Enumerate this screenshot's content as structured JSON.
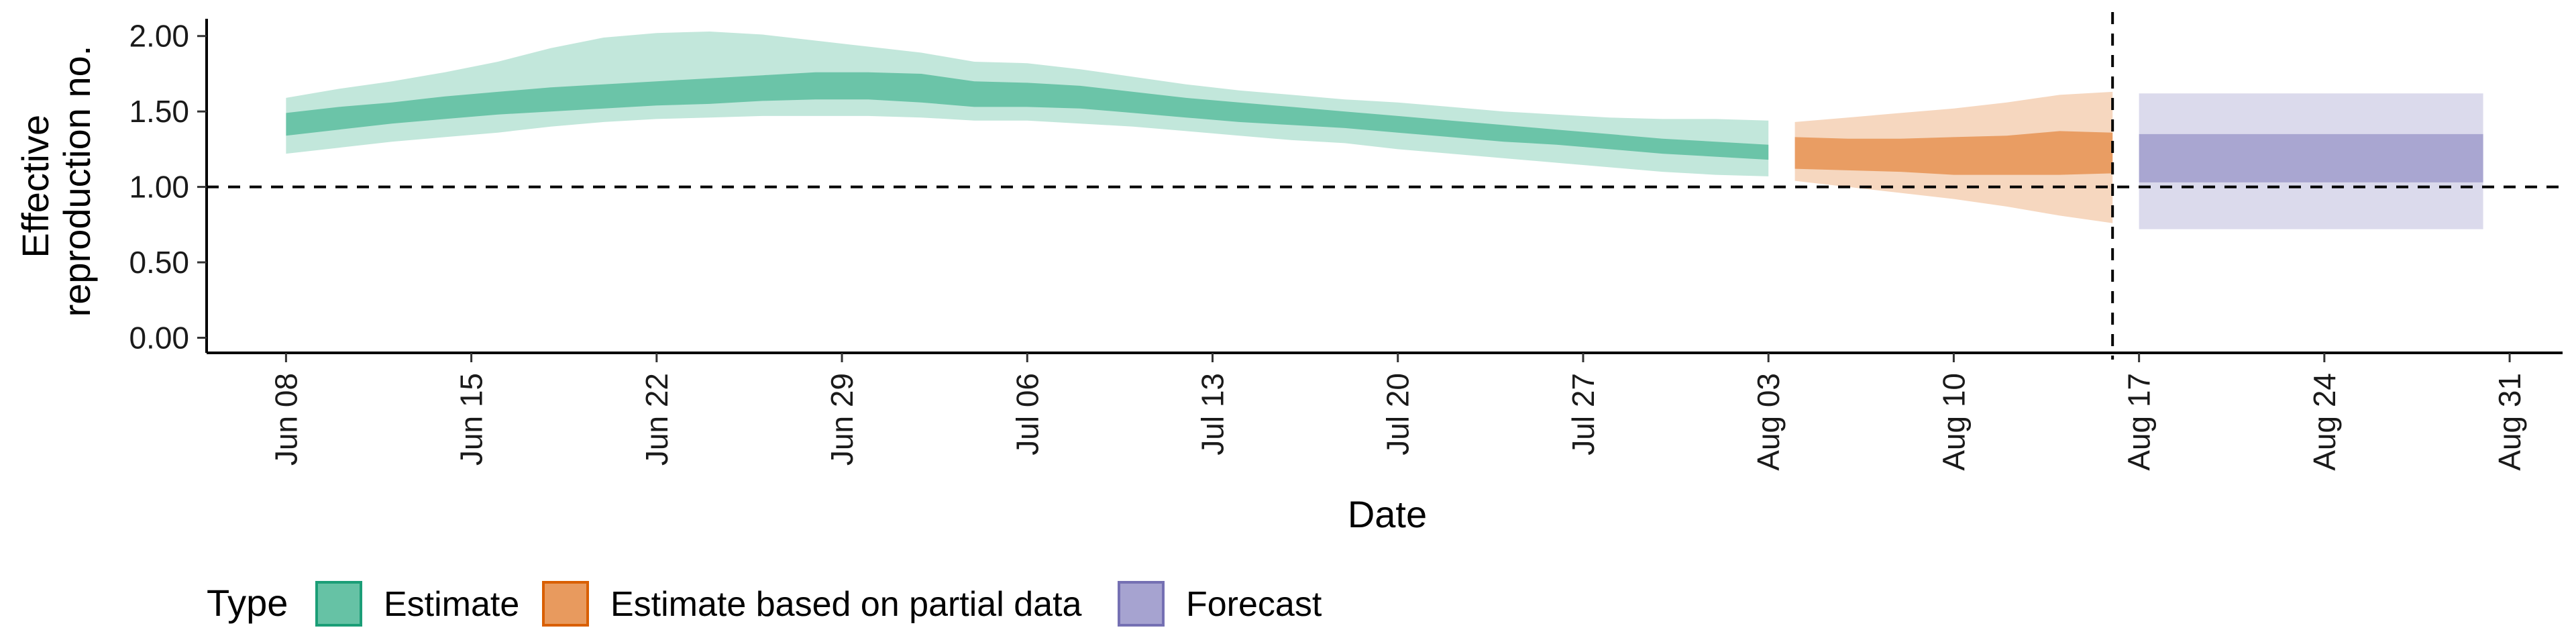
{
  "chart_data": {
    "type": "area",
    "title": "",
    "xlabel": "Date",
    "ylabel": [
      "Effective",
      "reproduction no."
    ],
    "x_axis": {
      "type": "date",
      "range": [
        "2020-06-05",
        "2020-09-02"
      ],
      "ticks": [
        "2020-06-08",
        "2020-06-15",
        "2020-06-22",
        "2020-06-29",
        "2020-07-06",
        "2020-07-13",
        "2020-07-20",
        "2020-07-27",
        "2020-08-03",
        "2020-08-10",
        "2020-08-17",
        "2020-08-24",
        "2020-08-31"
      ],
      "tick_labels": [
        "Jun 08",
        "Jun 15",
        "Jun 22",
        "Jun 29",
        "Jul 06",
        "Jul 13",
        "Jul 20",
        "Jul 27",
        "Aug 03",
        "Aug 10",
        "Aug 17",
        "Aug 24",
        "Aug 31"
      ]
    },
    "y_axis": {
      "range": [
        -0.1,
        2.15
      ],
      "ticks": [
        0,
        0.5,
        1.0,
        1.5,
        2.0
      ],
      "tick_labels": [
        "0.00",
        "0.50",
        "1.00",
        "1.50",
        "2.00"
      ]
    },
    "reference_lines": {
      "horizontal_y": 1.0,
      "vertical_x": "2020-08-16",
      "style": "dashed"
    },
    "legend": {
      "title": "Type",
      "placement": "bottom-left",
      "entries": [
        "Estimate",
        "Estimate based on partial data",
        "Forecast"
      ]
    },
    "series": [
      {
        "name": "Estimate",
        "fill_color": "#66c2a5",
        "line_color": "#1b9e77",
        "x": [
          "2020-06-08",
          "2020-06-10",
          "2020-06-12",
          "2020-06-14",
          "2020-06-16",
          "2020-06-18",
          "2020-06-20",
          "2020-06-22",
          "2020-06-24",
          "2020-06-26",
          "2020-06-28",
          "2020-06-30",
          "2020-07-02",
          "2020-07-04",
          "2020-07-06",
          "2020-07-08",
          "2020-07-10",
          "2020-07-12",
          "2020-07-14",
          "2020-07-16",
          "2020-07-18",
          "2020-07-20",
          "2020-07-22",
          "2020-07-24",
          "2020-07-26",
          "2020-07-28",
          "2020-07-30",
          "2020-08-01",
          "2020-08-03"
        ],
        "median_band_lower": [
          1.34,
          1.38,
          1.42,
          1.45,
          1.48,
          1.5,
          1.52,
          1.54,
          1.55,
          1.57,
          1.58,
          1.58,
          1.56,
          1.53,
          1.53,
          1.52,
          1.49,
          1.46,
          1.43,
          1.41,
          1.39,
          1.36,
          1.33,
          1.3,
          1.28,
          1.25,
          1.22,
          1.2,
          1.18
        ],
        "median_band_upper": [
          1.49,
          1.53,
          1.56,
          1.6,
          1.63,
          1.66,
          1.68,
          1.7,
          1.72,
          1.74,
          1.76,
          1.76,
          1.75,
          1.7,
          1.69,
          1.67,
          1.63,
          1.59,
          1.56,
          1.53,
          1.5,
          1.47,
          1.44,
          1.41,
          1.38,
          1.35,
          1.32,
          1.3,
          1.28
        ],
        "outer_band_lower": [
          1.22,
          1.26,
          1.3,
          1.33,
          1.36,
          1.4,
          1.43,
          1.45,
          1.46,
          1.47,
          1.47,
          1.47,
          1.46,
          1.44,
          1.44,
          1.42,
          1.4,
          1.37,
          1.34,
          1.31,
          1.29,
          1.25,
          1.22,
          1.19,
          1.16,
          1.13,
          1.1,
          1.08,
          1.07
        ],
        "outer_band_upper": [
          1.59,
          1.65,
          1.7,
          1.76,
          1.83,
          1.92,
          1.99,
          2.02,
          2.03,
          2.01,
          1.97,
          1.93,
          1.89,
          1.83,
          1.82,
          1.78,
          1.73,
          1.68,
          1.64,
          1.61,
          1.58,
          1.56,
          1.53,
          1.5,
          1.48,
          1.46,
          1.45,
          1.45,
          1.44
        ]
      },
      {
        "name": "Estimate based on partial data",
        "fill_color": "#e89a5e",
        "line_color": "#d95f02",
        "x": [
          "2020-08-04",
          "2020-08-06",
          "2020-08-08",
          "2020-08-10",
          "2020-08-12",
          "2020-08-14",
          "2020-08-16"
        ],
        "median_band_lower": [
          1.12,
          1.11,
          1.1,
          1.08,
          1.08,
          1.08,
          1.09
        ],
        "median_band_upper": [
          1.33,
          1.32,
          1.32,
          1.33,
          1.34,
          1.37,
          1.36
        ],
        "outer_band_lower": [
          1.04,
          1.0,
          0.96,
          0.92,
          0.87,
          0.81,
          0.76
        ],
        "outer_band_upper": [
          1.43,
          1.46,
          1.49,
          1.52,
          1.56,
          1.61,
          1.63
        ]
      },
      {
        "name": "Forecast",
        "fill_color": "#a6a3d0",
        "line_color": "#7570b3",
        "x": [
          "2020-08-17",
          "2020-08-30"
        ],
        "median_band_lower": [
          1.03,
          1.03
        ],
        "median_band_upper": [
          1.35,
          1.35
        ],
        "outer_band_lower": [
          0.72,
          0.72
        ],
        "outer_band_upper": [
          1.62,
          1.62
        ]
      }
    ]
  }
}
